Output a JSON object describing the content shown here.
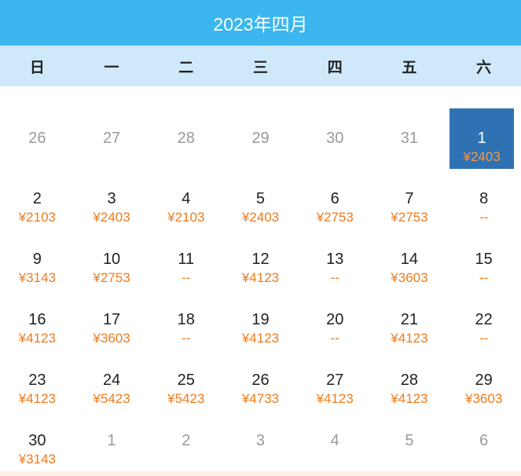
{
  "header": {
    "title": "2023年四月"
  },
  "weekdays": [
    "日",
    "一",
    "二",
    "三",
    "四",
    "五",
    "六"
  ],
  "colors": {
    "header": "#3cb6ef",
    "weekday_bar": "#cfe9fb",
    "selected": "#2f72b3",
    "price": "#f07a1a"
  },
  "selected_date": "1",
  "days": [
    {
      "day": "26",
      "price": "",
      "other": true
    },
    {
      "day": "27",
      "price": "",
      "other": true
    },
    {
      "day": "28",
      "price": "",
      "other": true
    },
    {
      "day": "29",
      "price": "",
      "other": true
    },
    {
      "day": "30",
      "price": "",
      "other": true
    },
    {
      "day": "31",
      "price": "",
      "other": true
    },
    {
      "day": "1",
      "price": "¥2403",
      "selected": true
    },
    {
      "day": "2",
      "price": "¥2103"
    },
    {
      "day": "3",
      "price": "¥2403"
    },
    {
      "day": "4",
      "price": "¥2103"
    },
    {
      "day": "5",
      "price": "¥2403"
    },
    {
      "day": "6",
      "price": "¥2753"
    },
    {
      "day": "7",
      "price": "¥2753"
    },
    {
      "day": "8",
      "price": "--"
    },
    {
      "day": "9",
      "price": "¥3143"
    },
    {
      "day": "10",
      "price": "¥2753"
    },
    {
      "day": "11",
      "price": "--"
    },
    {
      "day": "12",
      "price": "¥4123"
    },
    {
      "day": "13",
      "price": "--"
    },
    {
      "day": "14",
      "price": "¥3603"
    },
    {
      "day": "15",
      "price": "--"
    },
    {
      "day": "16",
      "price": "¥4123"
    },
    {
      "day": "17",
      "price": "¥3603"
    },
    {
      "day": "18",
      "price": "--"
    },
    {
      "day": "19",
      "price": "¥4123"
    },
    {
      "day": "20",
      "price": "--"
    },
    {
      "day": "21",
      "price": "¥4123"
    },
    {
      "day": "22",
      "price": "--"
    },
    {
      "day": "23",
      "price": "¥4123"
    },
    {
      "day": "24",
      "price": "¥5423"
    },
    {
      "day": "25",
      "price": "¥5423"
    },
    {
      "day": "26",
      "price": "¥4733"
    },
    {
      "day": "27",
      "price": "¥4123"
    },
    {
      "day": "28",
      "price": "¥4123"
    },
    {
      "day": "29",
      "price": "¥3603"
    },
    {
      "day": "30",
      "price": "¥3143"
    },
    {
      "day": "1",
      "price": "",
      "other": true
    },
    {
      "day": "2",
      "price": "",
      "other": true
    },
    {
      "day": "3",
      "price": "",
      "other": true
    },
    {
      "day": "4",
      "price": "",
      "other": true
    },
    {
      "day": "5",
      "price": "",
      "other": true
    },
    {
      "day": "6",
      "price": "",
      "other": true
    }
  ]
}
